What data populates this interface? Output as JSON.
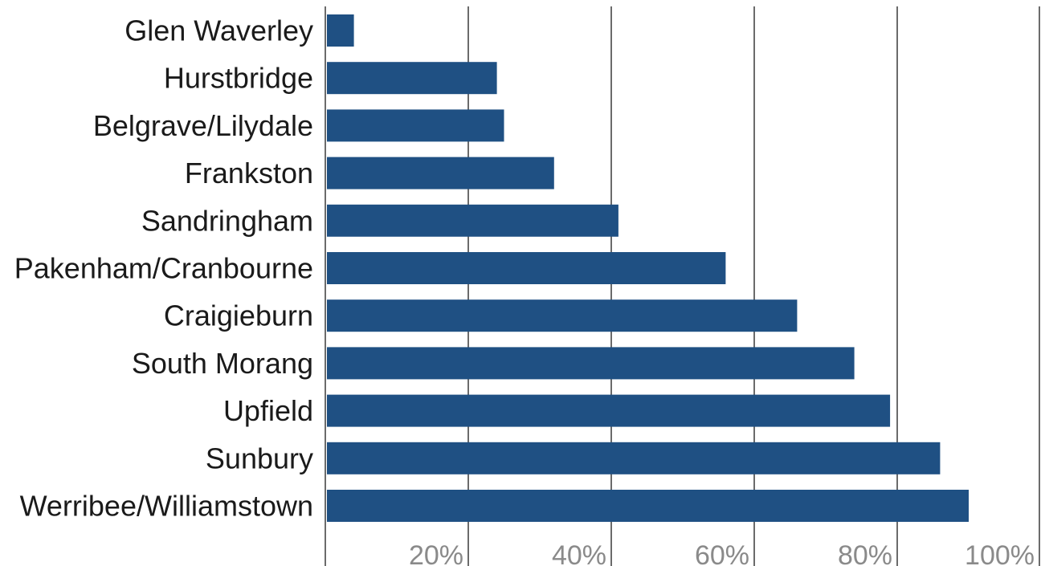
{
  "chart_data": {
    "type": "bar",
    "orientation": "horizontal",
    "title": "",
    "xlabel": "",
    "ylabel": "",
    "categories": [
      "Glen Waverley",
      "Hurstbridge",
      "Belgrave/Lilydale",
      "Frankston",
      "Sandringham",
      "Pakenham/Cranbourne",
      "Craigieburn",
      "South Morang",
      "Upfield",
      "Sunbury",
      "Werribee/Williamstown"
    ],
    "values": [
      4,
      24,
      25,
      32,
      41,
      56,
      66,
      74,
      79,
      86,
      90
    ],
    "xlim": [
      0,
      100
    ],
    "x_ticks": [
      20,
      40,
      60,
      80,
      100
    ],
    "x_tick_labels": [
      "20%",
      "40%",
      "60%",
      "80%",
      "100%"
    ],
    "grid": true,
    "legend": "none",
    "bar_color": "#1f5083"
  }
}
